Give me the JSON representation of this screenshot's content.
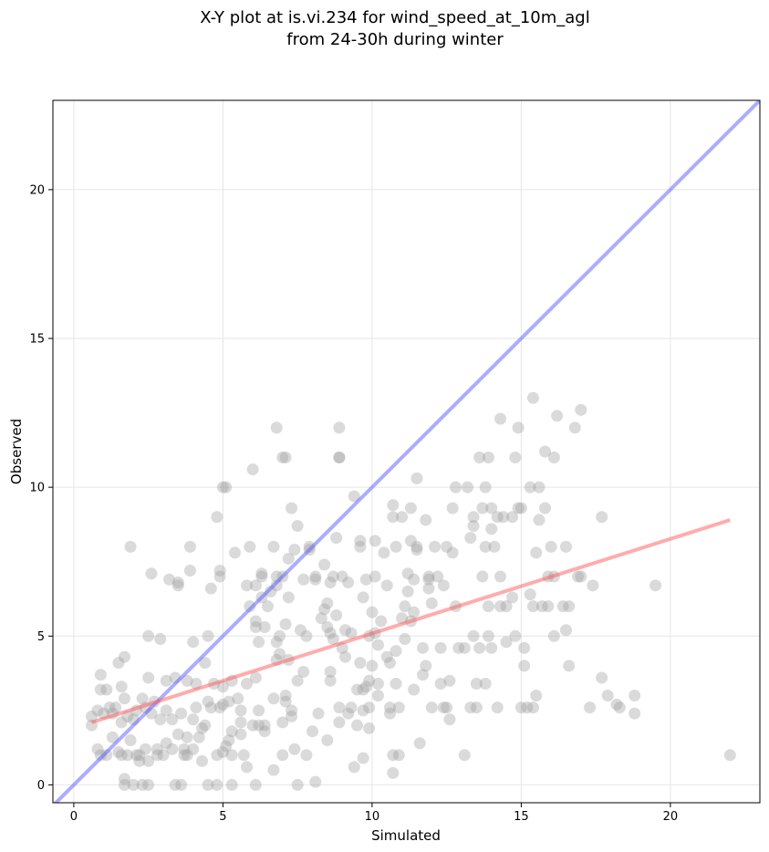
{
  "chart_data": {
    "type": "scatter",
    "title_lines": [
      "X-Y plot at is.vi.234 for wind_speed_at_10m_agl",
      "from 24-30h during winter"
    ],
    "xlabel": "Simulated",
    "ylabel": "Observed",
    "xlim": [
      -0.7,
      23.0
    ],
    "ylim": [
      -0.6,
      23.0
    ],
    "xticks": [
      0,
      5,
      10,
      15,
      20
    ],
    "yticks": [
      0,
      5,
      10,
      15,
      20
    ],
    "grid": true,
    "colors": {
      "points": "#9e9e9e",
      "identity_line": "#5a5aff",
      "fit_line": "#ff5a5a",
      "grid": "#e6e6e6"
    },
    "lines": {
      "identity": {
        "x": [
          -0.7,
          23.0
        ],
        "y": [
          -0.7,
          23.0
        ]
      },
      "fit": {
        "x": [
          0.6,
          22.0
        ],
        "y": [
          2.1,
          8.9
        ]
      }
    },
    "points": [
      [
        0.6,
        2.0
      ],
      [
        0.6,
        2.3
      ],
      [
        0.8,
        2.5
      ],
      [
        0.8,
        1.2
      ],
      [
        0.9,
        1.0
      ],
      [
        0.9,
        3.7
      ],
      [
        0.9,
        3.2
      ],
      [
        1.0,
        2.4
      ],
      [
        1.1,
        1.0
      ],
      [
        1.1,
        3.2
      ],
      [
        1.2,
        2.6
      ],
      [
        1.3,
        2.4
      ],
      [
        1.3,
        1.6
      ],
      [
        1.4,
        2.6
      ],
      [
        1.5,
        1.1
      ],
      [
        1.5,
        4.1
      ],
      [
        1.6,
        3.3
      ],
      [
        1.6,
        2.1
      ],
      [
        1.6,
        1.0
      ],
      [
        1.7,
        4.3
      ],
      [
        1.7,
        2.9
      ],
      [
        1.7,
        0.2
      ],
      [
        1.7,
        0.0
      ],
      [
        1.8,
        2.3
      ],
      [
        1.8,
        1.0
      ],
      [
        1.9,
        8.0
      ],
      [
        1.9,
        1.5
      ],
      [
        2.0,
        2.2
      ],
      [
        2.0,
        0.0
      ],
      [
        2.1,
        2.5
      ],
      [
        2.1,
        1.0
      ],
      [
        2.2,
        1.0
      ],
      [
        2.2,
        0.8
      ],
      [
        2.3,
        2.9
      ],
      [
        2.3,
        0.0
      ],
      [
        2.4,
        2.6
      ],
      [
        2.4,
        1.2
      ],
      [
        2.5,
        5.0
      ],
      [
        2.5,
        3.6
      ],
      [
        2.5,
        0.0
      ],
      [
        2.5,
        0.8
      ],
      [
        2.6,
        7.1
      ],
      [
        2.6,
        2.4
      ],
      [
        2.7,
        2.8
      ],
      [
        2.8,
        1.2
      ],
      [
        2.8,
        1.0
      ],
      [
        2.9,
        4.9
      ],
      [
        2.9,
        2.2
      ],
      [
        3.0,
        1.0
      ],
      [
        3.1,
        3.5
      ],
      [
        3.1,
        2.5
      ],
      [
        3.1,
        1.4
      ],
      [
        3.2,
        6.9
      ],
      [
        3.3,
        2.2
      ],
      [
        3.3,
        1.2
      ],
      [
        3.4,
        3.6
      ],
      [
        3.4,
        0.0
      ],
      [
        3.5,
        6.8
      ],
      [
        3.5,
        6.7
      ],
      [
        3.5,
        1.7
      ],
      [
        3.6,
        0.0
      ],
      [
        3.6,
        2.4
      ],
      [
        3.7,
        1.2
      ],
      [
        3.7,
        1.0
      ],
      [
        3.8,
        3.5
      ],
      [
        3.8,
        1.6
      ],
      [
        3.8,
        1.0
      ],
      [
        3.9,
        8.0
      ],
      [
        3.9,
        7.2
      ],
      [
        4.0,
        4.8
      ],
      [
        4.0,
        2.2
      ],
      [
        4.0,
        1.2
      ],
      [
        4.1,
        2.6
      ],
      [
        4.1,
        3.4
      ],
      [
        4.2,
        1.6
      ],
      [
        4.3,
        1.9
      ],
      [
        4.3,
        0.8
      ],
      [
        4.4,
        2.0
      ],
      [
        4.4,
        4.1
      ],
      [
        4.5,
        5.0
      ],
      [
        4.5,
        2.8
      ],
      [
        4.5,
        0.0
      ],
      [
        4.6,
        2.6
      ],
      [
        4.6,
        6.6
      ],
      [
        4.7,
        3.4
      ],
      [
        4.8,
        9.0
      ],
      [
        4.8,
        1.0
      ],
      [
        4.8,
        0.0
      ],
      [
        4.9,
        7.2
      ],
      [
        4.9,
        7.0
      ],
      [
        4.9,
        2.6
      ],
      [
        5.0,
        1.1
      ],
      [
        5.0,
        2.7
      ],
      [
        5.0,
        3.3
      ],
      [
        5.0,
        10.0
      ],
      [
        5.1,
        10.0
      ],
      [
        5.1,
        1.3
      ],
      [
        5.2,
        2.8
      ],
      [
        5.2,
        1.5
      ],
      [
        5.3,
        1.8
      ],
      [
        5.3,
        1.0
      ],
      [
        5.3,
        0.0
      ],
      [
        5.3,
        3.5
      ],
      [
        5.4,
        7.8
      ],
      [
        5.5,
        2.9
      ],
      [
        5.6,
        2.5
      ],
      [
        5.6,
        1.7
      ],
      [
        5.6,
        2.1
      ],
      [
        5.7,
        1.0
      ],
      [
        5.8,
        0.6
      ],
      [
        5.8,
        3.4
      ],
      [
        5.8,
        6.7
      ],
      [
        5.9,
        6.0
      ],
      [
        5.9,
        8.0
      ],
      [
        6.0,
        10.6
      ],
      [
        6.0,
        2.0
      ],
      [
        6.1,
        6.7
      ],
      [
        6.1,
        5.3
      ],
      [
        6.1,
        5.5
      ],
      [
        6.1,
        3.6
      ],
      [
        6.1,
        0.0
      ],
      [
        6.2,
        2.0
      ],
      [
        6.2,
        4.8
      ],
      [
        6.2,
        2.5
      ],
      [
        6.3,
        7.1
      ],
      [
        6.3,
        7.0
      ],
      [
        6.3,
        6.3
      ],
      [
        6.4,
        1.8
      ],
      [
        6.4,
        5.3
      ],
      [
        6.4,
        2.0
      ],
      [
        6.5,
        6.0
      ],
      [
        6.6,
        6.5
      ],
      [
        6.7,
        8.0
      ],
      [
        6.7,
        2.9
      ],
      [
        6.7,
        0.5
      ],
      [
        6.8,
        12.0
      ],
      [
        6.8,
        7.0
      ],
      [
        6.8,
        4.8
      ],
      [
        6.8,
        4.2
      ],
      [
        6.8,
        6.7
      ],
      [
        6.9,
        5.0
      ],
      [
        6.9,
        4.4
      ],
      [
        7.0,
        11.0
      ],
      [
        7.0,
        2.1
      ],
      [
        7.0,
        1.0
      ],
      [
        7.0,
        7.0
      ],
      [
        7.1,
        11.0
      ],
      [
        7.1,
        5.4
      ],
      [
        7.1,
        3.0
      ],
      [
        7.1,
        2.8
      ],
      [
        7.2,
        4.2
      ],
      [
        7.2,
        7.6
      ],
      [
        7.2,
        6.3
      ],
      [
        7.3,
        9.3
      ],
      [
        7.3,
        2.5
      ],
      [
        7.3,
        2.3
      ],
      [
        7.4,
        7.9
      ],
      [
        7.4,
        1.2
      ],
      [
        7.5,
        8.7
      ],
      [
        7.5,
        3.5
      ],
      [
        7.5,
        0.0
      ],
      [
        7.6,
        5.2
      ],
      [
        7.7,
        6.9
      ],
      [
        7.7,
        3.8
      ],
      [
        7.8,
        5.0
      ],
      [
        7.8,
        1.0
      ],
      [
        7.9,
        8.0
      ],
      [
        7.9,
        7.9
      ],
      [
        8.0,
        1.8
      ],
      [
        8.1,
        7.0
      ],
      [
        8.1,
        6.9
      ],
      [
        8.1,
        0.1
      ],
      [
        8.2,
        2.4
      ],
      [
        8.3,
        5.6
      ],
      [
        8.4,
        7.4
      ],
      [
        8.4,
        5.9
      ],
      [
        8.5,
        6.1
      ],
      [
        8.5,
        5.3
      ],
      [
        8.5,
        1.5
      ],
      [
        8.6,
        6.8
      ],
      [
        8.6,
        5.1
      ],
      [
        8.6,
        3.8
      ],
      [
        8.6,
        3.5
      ],
      [
        8.7,
        7.0
      ],
      [
        8.7,
        4.9
      ],
      [
        8.8,
        8.3
      ],
      [
        8.8,
        5.7
      ],
      [
        8.9,
        11.0
      ],
      [
        8.9,
        12.0
      ],
      [
        8.9,
        11.0
      ],
      [
        8.9,
        2.6
      ],
      [
        8.9,
        2.1
      ],
      [
        9.0,
        7.0
      ],
      [
        9.0,
        4.6
      ],
      [
        9.1,
        5.2
      ],
      [
        9.1,
        4.3
      ],
      [
        9.2,
        6.8
      ],
      [
        9.2,
        2.4
      ],
      [
        9.3,
        5.1
      ],
      [
        9.3,
        2.6
      ],
      [
        9.4,
        9.7
      ],
      [
        9.4,
        0.6
      ],
      [
        9.5,
        3.2
      ],
      [
        9.5,
        2.0
      ],
      [
        9.6,
        8.0
      ],
      [
        9.6,
        8.2
      ],
      [
        9.6,
        4.1
      ],
      [
        9.7,
        6.3
      ],
      [
        9.7,
        3.2
      ],
      [
        9.7,
        2.5
      ],
      [
        9.7,
        0.9
      ],
      [
        9.8,
        6.9
      ],
      [
        9.8,
        3.3
      ],
      [
        9.9,
        5.0
      ],
      [
        9.9,
        3.5
      ],
      [
        9.9,
        2.6
      ],
      [
        9.9,
        1.9
      ],
      [
        10.0,
        5.8
      ],
      [
        10.0,
        4.0
      ],
      [
        10.1,
        8.2
      ],
      [
        10.1,
        7.0
      ],
      [
        10.1,
        5.1
      ],
      [
        10.2,
        4.7
      ],
      [
        10.2,
        3.4
      ],
      [
        10.2,
        3.0
      ],
      [
        10.3,
        5.5
      ],
      [
        10.4,
        7.8
      ],
      [
        10.5,
        6.7
      ],
      [
        10.5,
        4.3
      ],
      [
        10.6,
        2.6
      ],
      [
        10.6,
        2.4
      ],
      [
        10.6,
        4.1
      ],
      [
        10.7,
        9.4
      ],
      [
        10.7,
        9.0
      ],
      [
        10.7,
        1.0
      ],
      [
        10.7,
        0.4
      ],
      [
        10.8,
        8.0
      ],
      [
        10.8,
        4.5
      ],
      [
        10.8,
        3.4
      ],
      [
        10.9,
        2.6
      ],
      [
        10.9,
        1.0
      ],
      [
        11.0,
        9.0
      ],
      [
        11.0,
        5.6
      ],
      [
        11.1,
        6.0
      ],
      [
        11.1,
        4.9
      ],
      [
        11.2,
        6.5
      ],
      [
        11.2,
        7.1
      ],
      [
        11.3,
        9.3
      ],
      [
        11.3,
        8.2
      ],
      [
        11.3,
        5.5
      ],
      [
        11.4,
        6.9
      ],
      [
        11.4,
        3.2
      ],
      [
        11.4,
        5.8
      ],
      [
        11.5,
        10.3
      ],
      [
        11.5,
        8.0
      ],
      [
        11.5,
        7.9
      ],
      [
        11.6,
        1.4
      ],
      [
        11.7,
        3.7
      ],
      [
        11.7,
        4.6
      ],
      [
        11.8,
        8.9
      ],
      [
        11.8,
        4.0
      ],
      [
        11.9,
        6.6
      ],
      [
        11.9,
        6.9
      ],
      [
        11.9,
        7.0
      ],
      [
        12.0,
        2.6
      ],
      [
        12.0,
        6.1
      ],
      [
        12.1,
        8.0
      ],
      [
        12.2,
        7.0
      ],
      [
        12.3,
        4.6
      ],
      [
        12.3,
        3.4
      ],
      [
        12.4,
        6.7
      ],
      [
        12.4,
        2.6
      ],
      [
        12.5,
        8.0
      ],
      [
        12.5,
        2.6
      ],
      [
        12.6,
        3.5
      ],
      [
        12.6,
        2.2
      ],
      [
        12.7,
        9.3
      ],
      [
        12.7,
        7.8
      ],
      [
        12.8,
        10.0
      ],
      [
        12.8,
        6.0
      ],
      [
        12.9,
        4.6
      ],
      [
        13.1,
        1.0
      ],
      [
        13.1,
        4.6
      ],
      [
        13.2,
        10.0
      ],
      [
        13.3,
        8.3
      ],
      [
        13.3,
        2.6
      ],
      [
        13.4,
        9.0
      ],
      [
        13.4,
        8.7
      ],
      [
        13.4,
        5.0
      ],
      [
        13.5,
        3.4
      ],
      [
        13.5,
        2.6
      ],
      [
        13.6,
        11.0
      ],
      [
        13.6,
        4.6
      ],
      [
        13.7,
        9.3
      ],
      [
        13.7,
        7.0
      ],
      [
        13.8,
        10.0
      ],
      [
        13.8,
        8.0
      ],
      [
        13.8,
        3.4
      ],
      [
        13.9,
        11.0
      ],
      [
        13.9,
        6.0
      ],
      [
        13.9,
        5.0
      ],
      [
        14.0,
        9.3
      ],
      [
        14.0,
        8.6
      ],
      [
        14.0,
        4.6
      ],
      [
        14.1,
        8.0
      ],
      [
        14.2,
        2.6
      ],
      [
        14.2,
        9.0
      ],
      [
        14.3,
        12.3
      ],
      [
        14.3,
        7.0
      ],
      [
        14.3,
        6.0
      ],
      [
        14.4,
        9.0
      ],
      [
        14.5,
        6.0
      ],
      [
        14.5,
        4.8
      ],
      [
        14.7,
        9.0
      ],
      [
        14.7,
        6.3
      ],
      [
        14.8,
        11.0
      ],
      [
        14.8,
        5.0
      ],
      [
        14.9,
        12.0
      ],
      [
        14.9,
        9.3
      ],
      [
        15.0,
        9.3
      ],
      [
        15.0,
        2.6
      ],
      [
        15.1,
        4.6
      ],
      [
        15.1,
        4.0
      ],
      [
        15.2,
        2.6
      ],
      [
        15.3,
        6.4
      ],
      [
        15.3,
        10.0
      ],
      [
        15.4,
        13.0
      ],
      [
        15.4,
        6.0
      ],
      [
        15.4,
        2.6
      ],
      [
        15.5,
        7.8
      ],
      [
        15.5,
        3.0
      ],
      [
        15.6,
        8.9
      ],
      [
        15.6,
        10.0
      ],
      [
        15.7,
        6.0
      ],
      [
        15.8,
        11.2
      ],
      [
        15.8,
        9.3
      ],
      [
        15.9,
        7.0
      ],
      [
        15.9,
        6.0
      ],
      [
        16.0,
        8.0
      ],
      [
        16.1,
        11.0
      ],
      [
        16.1,
        5.0
      ],
      [
        16.1,
        7.0
      ],
      [
        16.2,
        12.4
      ],
      [
        16.4,
        6.0
      ],
      [
        16.5,
        5.2
      ],
      [
        16.5,
        8.0
      ],
      [
        16.6,
        4.0
      ],
      [
        16.6,
        6.0
      ],
      [
        16.8,
        12.0
      ],
      [
        16.9,
        7.0
      ],
      [
        17.0,
        12.6
      ],
      [
        17.0,
        7.0
      ],
      [
        17.3,
        2.6
      ],
      [
        17.4,
        6.7
      ],
      [
        17.7,
        9.0
      ],
      [
        17.7,
        3.6
      ],
      [
        17.9,
        3.0
      ],
      [
        18.2,
        2.7
      ],
      [
        18.3,
        2.6
      ],
      [
        18.8,
        3.0
      ],
      [
        18.8,
        2.4
      ],
      [
        19.5,
        6.7
      ],
      [
        22.0,
        1.0
      ]
    ]
  }
}
